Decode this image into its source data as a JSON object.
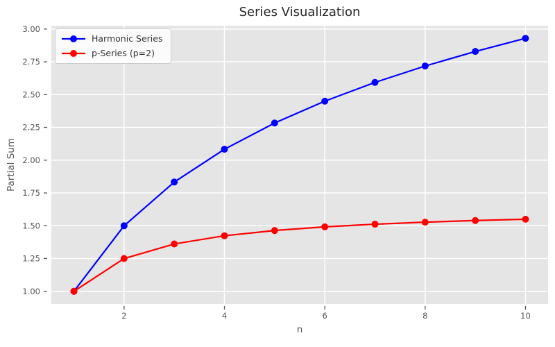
{
  "chart_data": {
    "type": "line",
    "title": "Series Visualization",
    "xlabel": "n",
    "ylabel": "Partial Sum",
    "x": [
      1,
      2,
      3,
      4,
      5,
      6,
      7,
      8,
      9,
      10
    ],
    "series": [
      {
        "name": "Harmonic Series",
        "color": "#0000ff",
        "marker": "circle",
        "values": [
          1.0,
          1.5,
          1.8333,
          2.0833,
          2.2833,
          2.45,
          2.5929,
          2.7179,
          2.829,
          2.929
        ]
      },
      {
        "name": "p-Series (p=2)",
        "color": "#ff0000",
        "marker": "circle",
        "values": [
          1.0,
          1.25,
          1.3611,
          1.4236,
          1.4636,
          1.4914,
          1.5118,
          1.5274,
          1.5398,
          1.5498
        ]
      }
    ],
    "xticks": [
      2,
      4,
      6,
      8,
      10
    ],
    "xticklabels": [
      "2",
      "4",
      "6",
      "8",
      "10"
    ],
    "yticks": [
      1.0,
      1.25,
      1.5,
      1.75,
      2.0,
      2.25,
      2.5,
      2.75,
      3.0
    ],
    "yticklabels": [
      "1.00",
      "1.25",
      "1.50",
      "1.75",
      "2.00",
      "2.25",
      "2.50",
      "2.75",
      "3.00"
    ],
    "xlim": [
      0.55,
      10.45
    ],
    "ylim": [
      0.9035,
      3.0255
    ],
    "grid": true,
    "legend_position": "upper-left",
    "style": {
      "figure_bg": "#ffffff",
      "axes_bg": "#e5e5e5",
      "grid_color": "#ffffff",
      "tick_color": "#555555",
      "label_color": "#555555",
      "title_color": "#262626",
      "legend_bg": "rgba(255,255,255,0.85)",
      "legend_border": "#cccccc",
      "legend_text": "#333333"
    }
  }
}
